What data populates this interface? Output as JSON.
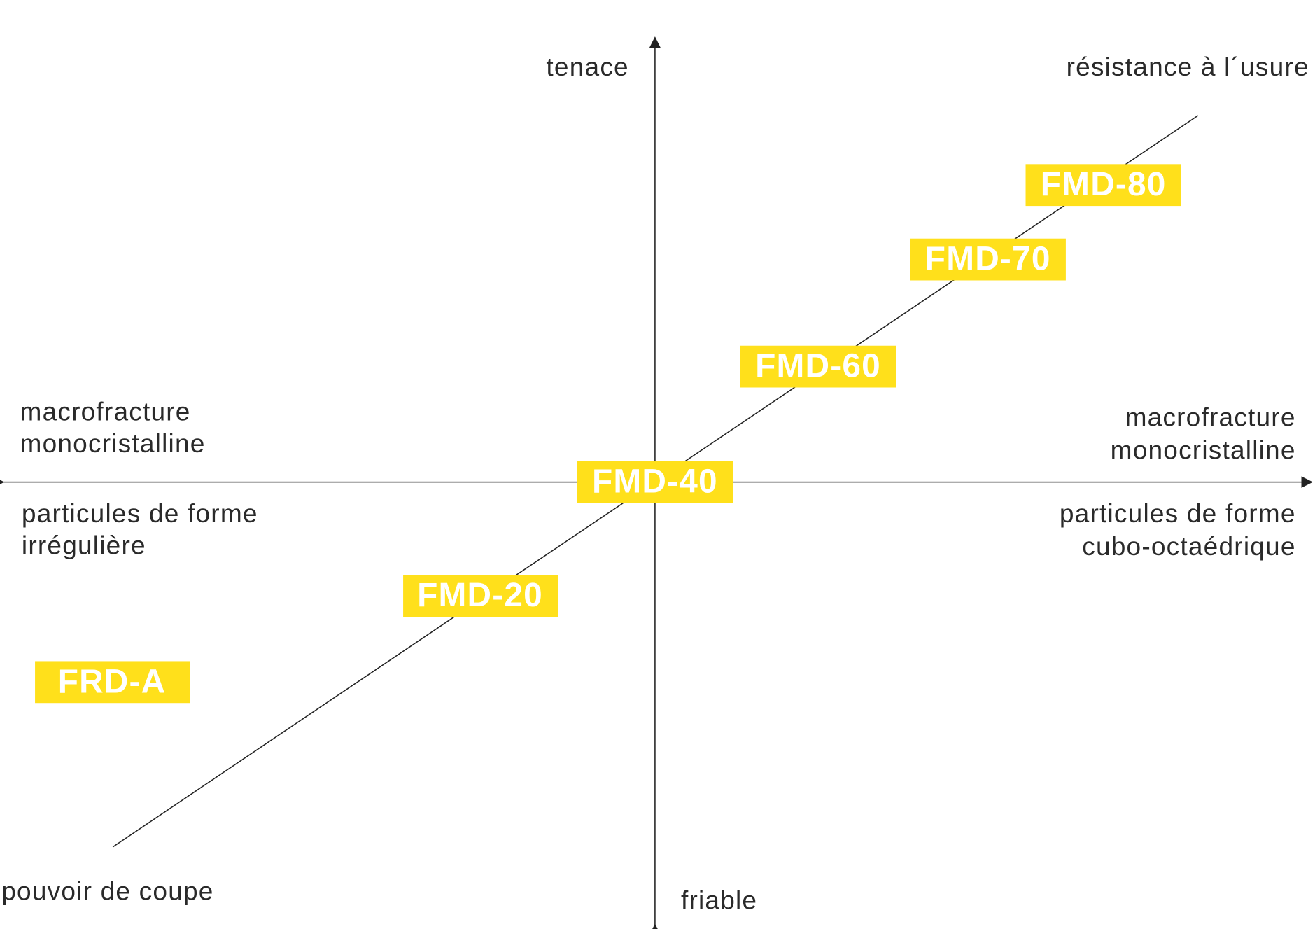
{
  "axes": {
    "top": "tenace",
    "bottom": "friable",
    "diagonal_top": "résistance à l´usure",
    "diagonal_bottom": "pouvoir de coupe",
    "left_upper": [
      "macrofracture",
      "monocristalline"
    ],
    "left_lower": [
      "particules de forme",
      "irrégulière"
    ],
    "right_upper": [
      "macrofracture",
      "monocristalline"
    ],
    "right_lower": [
      "particules de forme",
      "cubo-octaédrique"
    ]
  },
  "nodes": [
    {
      "label": "FMD-80"
    },
    {
      "label": "FMD-70"
    },
    {
      "label": "FMD-60"
    },
    {
      "label": "FMD-40"
    },
    {
      "label": "FMD-20"
    },
    {
      "label": "FRD-A"
    }
  ]
}
